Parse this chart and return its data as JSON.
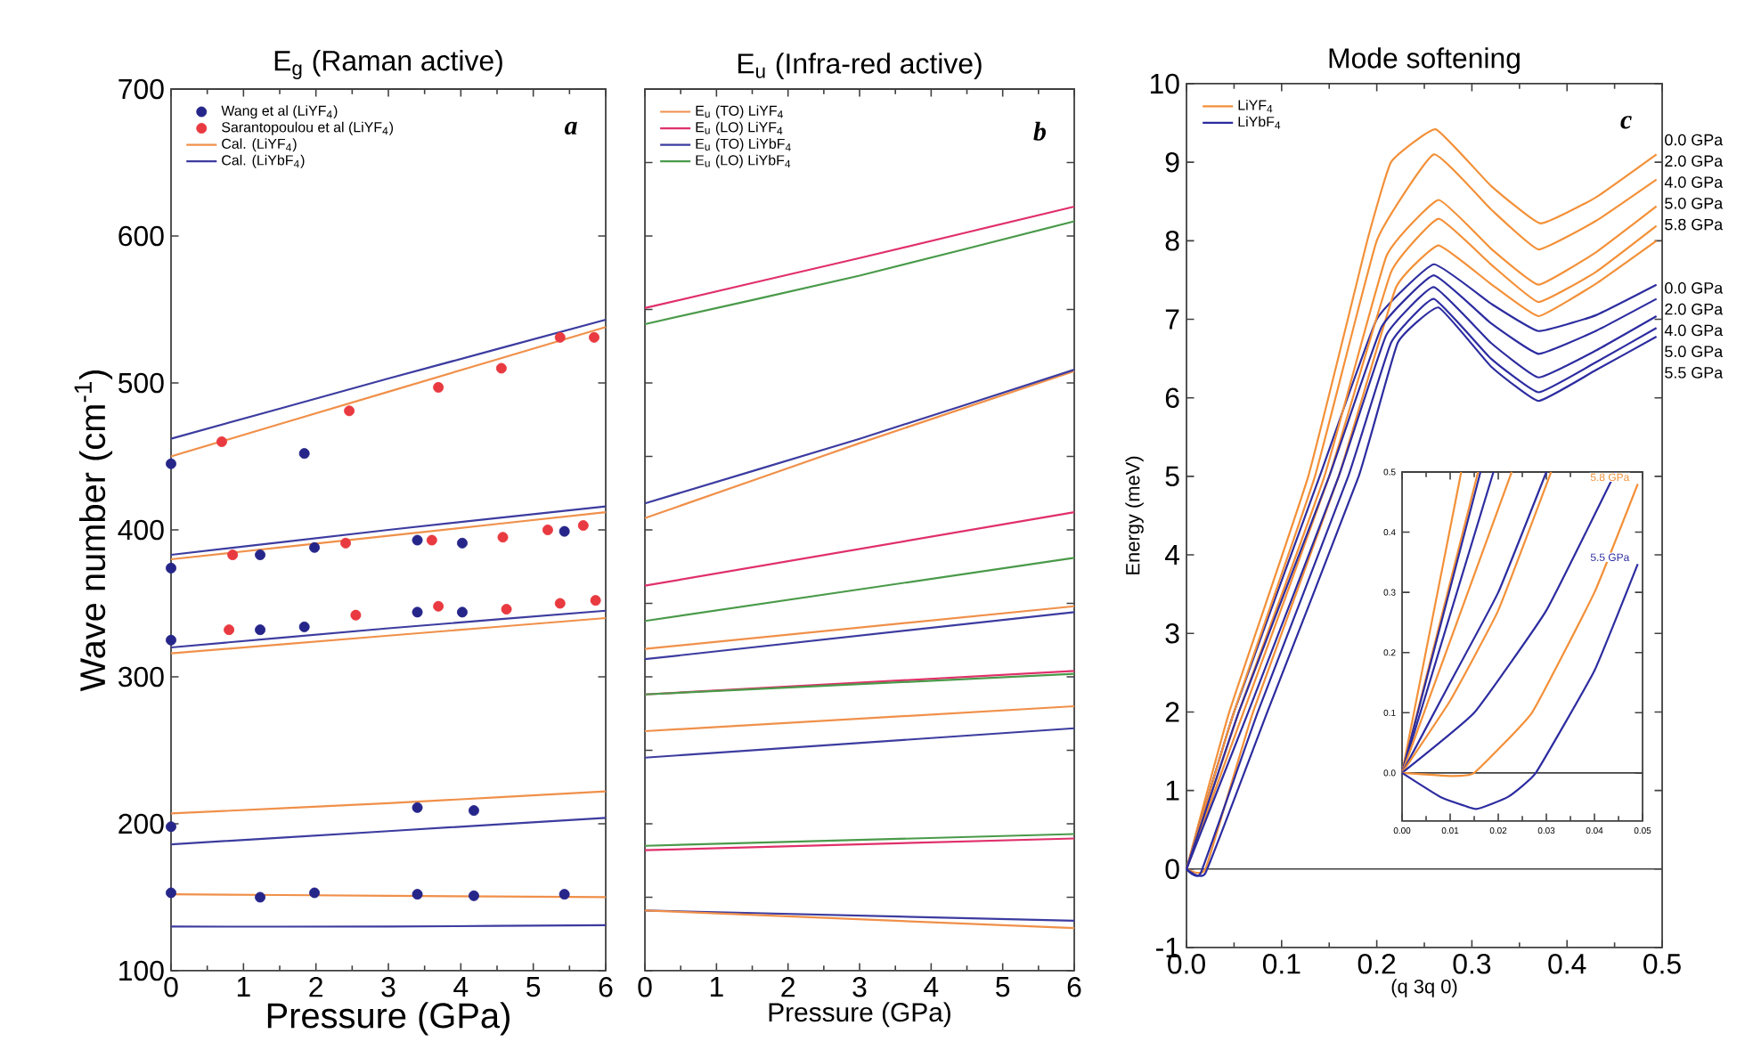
{
  "chart_data": [
    {
      "type": "line",
      "title": "E$_{g}$ (Raman active)",
      "xlabel": "Pressure (GPa)",
      "ylabel": "Wave number (cm$^{-1}$)",
      "xlim": [
        0,
        6
      ],
      "ylim": [
        100,
        700
      ],
      "xticks": [
        0,
        1,
        2,
        3,
        4,
        5,
        6
      ],
      "yticks": [
        100,
        200,
        300,
        400,
        500,
        600,
        700
      ],
      "legend": "top left",
      "annotations": [
        "a"
      ],
      "series": [
        {
          "name": "Wang et al (LiYF$_{4}$)",
          "type": "scatter",
          "marker": "circle",
          "color": "#26268a",
          "x": [
            0,
            0,
            0,
            0,
            0,
            1.23,
            1.23,
            1.23,
            1.84,
            1.84,
            1.98,
            1.98,
            3.4,
            3.4,
            3.4,
            3.4,
            4.02,
            4.02,
            4.18,
            4.18,
            5.43,
            5.43
          ],
          "values": [
            445,
            374,
            325,
            198,
            153,
            383,
            332,
            150,
            452,
            334,
            388,
            153,
            393,
            344,
            211,
            152,
            391,
            344,
            209,
            151,
            399,
            152
          ]
        },
        {
          "name": "Sarantopoulou et al (LiYF$_{4}$)",
          "type": "scatter",
          "marker": "circle",
          "color": "#e83a40",
          "x": [
            0.7,
            0.85,
            0.8,
            2.46,
            2.41,
            2.55,
            3.69,
            3.6,
            3.69,
            4.56,
            4.58,
            4.63,
            5.37,
            5.2,
            5.37,
            5.84,
            5.69,
            5.86
          ],
          "values": [
            460,
            383,
            332,
            481,
            391,
            342,
            497,
            393,
            348,
            510,
            395,
            346,
            531,
            400,
            350,
            531,
            403,
            352
          ]
        },
        {
          "name": "Cal. (LiYF$_{4}$)",
          "color": "#f0904a",
          "x": [
            0,
            3,
            6
          ],
          "values": [
            450,
            494,
            538
          ]
        },
        {
          "name": "Cal. (LiYbF$_{4}$)",
          "color": "#3c3ca0",
          "x": [
            0,
            3,
            6
          ],
          "values": [
            462,
            503,
            543
          ]
        },
        {
          "color": "#f0904a",
          "x": [
            0,
            3,
            6
          ],
          "values": [
            380,
            396,
            412
          ]
        },
        {
          "color": "#f0904a",
          "x": [
            0,
            3,
            6
          ],
          "values": [
            316,
            328,
            340
          ]
        },
        {
          "color": "#f0904a",
          "x": [
            0,
            3,
            6
          ],
          "values": [
            207,
            214,
            222
          ]
        },
        {
          "color": "#f0904a",
          "x": [
            0,
            3,
            6
          ],
          "values": [
            152,
            151,
            150
          ]
        },
        {
          "color": "#3c3ca0",
          "x": [
            0,
            3,
            6
          ],
          "values": [
            383,
            400,
            416
          ]
        },
        {
          "color": "#3c3ca0",
          "x": [
            0,
            3,
            6
          ],
          "values": [
            320,
            333,
            345
          ]
        },
        {
          "color": "#3c3ca0",
          "x": [
            0,
            3,
            6
          ],
          "values": [
            186,
            195,
            204
          ]
        },
        {
          "color": "#3c3ca0",
          "x": [
            0,
            3,
            6
          ],
          "values": [
            130,
            130,
            131
          ]
        }
      ]
    },
    {
      "type": "line",
      "title": "E$_{u}$ (Infra-red active)",
      "xlabel": "Pressure (GPa)",
      "xlim": [
        0,
        6
      ],
      "ylim": [
        100,
        700
      ],
      "xticks": [
        0,
        1,
        2,
        3,
        4,
        5,
        6
      ],
      "yticks": [
        {
          "value": 100,
          "label": null
        },
        {
          "value": 150,
          "label": null
        },
        {
          "value": 200,
          "label": null
        },
        {
          "value": 250,
          "label": null
        },
        {
          "value": 300,
          "label": null
        },
        {
          "value": 350,
          "label": null
        },
        {
          "value": 400,
          "label": null
        },
        {
          "value": 450,
          "label": null
        },
        {
          "value": 500,
          "label": null
        },
        {
          "value": 550,
          "label": null
        },
        {
          "value": 600,
          "label": null
        },
        {
          "value": 650,
          "label": null
        },
        {
          "value": 700,
          "label": null
        }
      ],
      "tick_labels": "x",
      "legend": "top left",
      "annotations": [
        "b"
      ],
      "series": [
        {
          "name": "E$_{u}$ (TO) LiYF$_{4}$",
          "color": "#f0904a",
          "x": [
            0,
            3,
            6
          ],
          "values": [
            408,
            459,
            508
          ]
        },
        {
          "name": "E$_{u}$ (LO) LiYF$_{4}$",
          "color": "#e0306a",
          "x": [
            0,
            3,
            6
          ],
          "values": [
            551,
            585,
            620
          ]
        },
        {
          "name": "E$_{u}$ (TO) LiYbF$_{4}$",
          "color": "#3c3ca0",
          "x": [
            0,
            3,
            6
          ],
          "values": [
            418,
            462,
            509
          ]
        },
        {
          "name": "E$_{u}$ (LO) LiYbF$_{4}$",
          "color": "#4a9a4a",
          "x": [
            0,
            3,
            6
          ],
          "values": [
            540,
            573,
            610
          ]
        },
        {
          "color": "#e0306a",
          "x": [
            0,
            6
          ],
          "values": [
            362,
            412
          ]
        },
        {
          "color": "#4a9a4a",
          "x": [
            0,
            6
          ],
          "values": [
            338,
            381
          ]
        },
        {
          "color": "#f0904a",
          "x": [
            0,
            6
          ],
          "values": [
            319,
            348
          ]
        },
        {
          "color": "#3c3ca0",
          "x": [
            0,
            6
          ],
          "values": [
            312,
            344
          ]
        },
        {
          "color": "#e0306a",
          "x": [
            0,
            6
          ],
          "values": [
            288,
            304
          ]
        },
        {
          "color": "#4a9a4a",
          "x": [
            0,
            6
          ],
          "values": [
            288,
            302
          ]
        },
        {
          "color": "#f0904a",
          "x": [
            0,
            6
          ],
          "values": [
            263,
            280
          ]
        },
        {
          "color": "#3c3ca0",
          "x": [
            0,
            6
          ],
          "values": [
            245,
            265
          ]
        },
        {
          "color": "#4a9a4a",
          "x": [
            0,
            6
          ],
          "values": [
            185,
            193
          ]
        },
        {
          "color": "#e0306a",
          "x": [
            0,
            6
          ],
          "values": [
            182,
            190
          ]
        },
        {
          "color": "#3c3ca0",
          "x": [
            0,
            6
          ],
          "values": [
            141,
            134
          ]
        },
        {
          "color": "#f0904a",
          "x": [
            0,
            6
          ],
          "values": [
            141,
            129
          ]
        }
      ]
    },
    {
      "type": "line",
      "title": "Mode softening",
      "xlabel": "(q 3q 0)",
      "ylabel": "Energy (meV)",
      "xlim": [
        0,
        0.5
      ],
      "ylim": [
        -1,
        10
      ],
      "xticks": [
        {
          "value": 0,
          "label": "0.0"
        },
        {
          "value": 0.1,
          "label": "0.1"
        },
        {
          "value": 0.2,
          "label": "0.2"
        },
        {
          "value": 0.3,
          "label": "0.3"
        },
        {
          "value": 0.4,
          "label": "0.4"
        },
        {
          "value": 0.5,
          "label": "0.5"
        }
      ],
      "yticks": [
        -1,
        0,
        1,
        2,
        3,
        4,
        5,
        6,
        7,
        8,
        9,
        10
      ],
      "legend": "top left",
      "ref_lines": [
        {
          "axis": "y",
          "value": 0
        }
      ],
      "annotations": [
        "c",
        "0.0 GPa",
        "2.0 GPa",
        "4.0 GPa",
        "5.0 GPa",
        "5.8 GPa",
        "0.0 GPa",
        "2.0 GPa",
        "4.0 GPa",
        "5.0 GPa",
        "5.5 GPa"
      ],
      "series": [
        {
          "name": "LiYF$_{4}$",
          "color": "#f39038",
          "x": [
            0,
            0.045,
            0.128,
            0.19,
            0.215,
            0.262,
            0.32,
            0.372,
            0.43,
            0.494
          ],
          "values": [
            0,
            2,
            5,
            8,
            9,
            9.42,
            8.7,
            8.22,
            8.55,
            9.1
          ]
        },
        {
          "name": "LiYbF$_{4}$",
          "color": "#2c2ca0",
          "x": [
            0,
            0.05,
            0.14,
            0.2,
            0.26,
            0.32,
            0.37,
            0.43,
            0.494
          ],
          "values": [
            0,
            2,
            5,
            7.0,
            7.7,
            7.2,
            6.85,
            7.05,
            7.44
          ]
        },
        {
          "color": "#f39038",
          "x": [
            0,
            0.05,
            0.135,
            0.2,
            0.26,
            0.32,
            0.37,
            0.43,
            0.494
          ],
          "values": [
            0,
            2,
            5,
            8,
            9.1,
            8.4,
            7.89,
            8.25,
            8.78
          ]
        },
        {
          "color": "#f39038",
          "x": [
            0,
            0.055,
            0.145,
            0.21,
            0.265,
            0.32,
            0.37,
            0.43,
            0.494
          ],
          "values": [
            0,
            2,
            5,
            7.8,
            8.52,
            7.9,
            7.44,
            7.85,
            8.44
          ]
        },
        {
          "color": "#f39038",
          "x": [
            0,
            0.06,
            0.15,
            0.215,
            0.265,
            0.32,
            0.37,
            0.43,
            0.494
          ],
          "values": [
            0,
            2,
            5,
            7.6,
            8.28,
            7.7,
            7.22,
            7.6,
            8.19
          ]
        },
        {
          "color": "#f39038",
          "x": [
            0,
            0.02,
            0.07,
            0.16,
            0.22,
            0.265,
            0.32,
            0.37,
            0.43,
            0.494
          ],
          "values": [
            0,
            0,
            2,
            5,
            7.4,
            7.94,
            7.45,
            7.04,
            7.45,
            8.0
          ]
        },
        {
          "color": "#2c2ca0",
          "x": [
            0,
            0.055,
            0.15,
            0.205,
            0.26,
            0.32,
            0.37,
            0.43,
            0.494
          ],
          "values": [
            0,
            2,
            5,
            6.9,
            7.56,
            6.95,
            6.56,
            6.85,
            7.26
          ]
        },
        {
          "color": "#2c2ca0",
          "x": [
            0,
            0.065,
            0.16,
            0.21,
            0.26,
            0.32,
            0.37,
            0.43,
            0.494
          ],
          "values": [
            0,
            2,
            5,
            6.8,
            7.41,
            6.7,
            6.26,
            6.6,
            7.04
          ]
        },
        {
          "color": "#2c2ca0",
          "x": [
            0,
            0.015,
            0.075,
            0.17,
            0.215,
            0.26,
            0.32,
            0.37,
            0.43,
            0.494
          ],
          "values": [
            0,
            -0.05,
            2,
            5,
            6.7,
            7.26,
            6.5,
            6.07,
            6.45,
            6.89
          ]
        },
        {
          "color": "#2c2ca0",
          "x": [
            0,
            0.02,
            0.085,
            0.181,
            0.222,
            0.265,
            0.32,
            0.37,
            0.43,
            0.494
          ],
          "values": [
            0,
            -0.05,
            2,
            5,
            6.7,
            7.15,
            6.4,
            5.96,
            6.35,
            6.78
          ]
        }
      ]
    },
    {
      "type": "line",
      "xlim": [
        0,
        0.05
      ],
      "ylim": [
        -0.08,
        0.5
      ],
      "xticks": [
        {
          "value": 0,
          "label": "0.00"
        },
        {
          "value": 0.01,
          "label": "0.01"
        },
        {
          "value": 0.02,
          "label": "0.02"
        },
        {
          "value": 0.03,
          "label": "0.03"
        },
        {
          "value": 0.04,
          "label": "0.04"
        },
        {
          "value": 0.05,
          "label": "0.05"
        }
      ],
      "yticks": [
        {
          "value": 0,
          "label": "0.0"
        },
        {
          "value": 0.1,
          "label": "0.1"
        },
        {
          "value": 0.2,
          "label": "0.2"
        },
        {
          "value": 0.3,
          "label": "0.3"
        },
        {
          "value": 0.4,
          "label": "0.4"
        },
        {
          "value": 0.5,
          "label": "0.5"
        }
      ],
      "ref_lines": [
        {
          "axis": "y",
          "value": 0
        }
      ],
      "series": [
        {
          "color": "#f39038",
          "x": [
            0,
            0.0123
          ],
          "values": [
            0,
            0.5
          ]
        },
        {
          "color": "#f39038",
          "x": [
            0,
            0.0158
          ],
          "values": [
            0,
            0.5
          ]
        },
        {
          "color": "#2c2ca0",
          "x": [
            0,
            0.0163
          ],
          "values": [
            0,
            0.5
          ]
        },
        {
          "color": "#2c2ca0",
          "x": [
            0,
            0.019
          ],
          "values": [
            0,
            0.5
          ]
        },
        {
          "color": "#f39038",
          "x": [
            0,
            0.0228
          ],
          "values": [
            0,
            0.5
          ]
        },
        {
          "color": "#2c2ca0",
          "x": [
            0,
            0.01,
            0.02,
            0.03
          ],
          "values": [
            0,
            0.15,
            0.3,
            0.5
          ]
        },
        {
          "color": "#f39038",
          "x": [
            0,
            0.01,
            0.02,
            0.031
          ],
          "values": [
            0,
            0.12,
            0.27,
            0.5
          ]
        },
        {
          "color": "#2c2ca0",
          "x": [
            0,
            0.015,
            0.03,
            0.0444
          ],
          "values": [
            0,
            0.1,
            0.27,
            0.5
          ]
        },
        {
          "name": "5.8 GPa",
          "color": "#f39038",
          "x": [
            0,
            0.01,
            0.015,
            0.027,
            0.04,
            0.049
          ],
          "values": [
            0,
            -0.005,
            0,
            0.1,
            0.3,
            0.48
          ]
        },
        {
          "name": "5.5 GPa",
          "color": "#2c2ca0",
          "x": [
            0,
            0.008,
            0.0154,
            0.022,
            0.0278,
            0.04,
            0.049
          ],
          "values": [
            0,
            -0.04,
            -0.06,
            -0.04,
            0,
            0.17,
            0.347
          ]
        }
      ]
    }
  ]
}
